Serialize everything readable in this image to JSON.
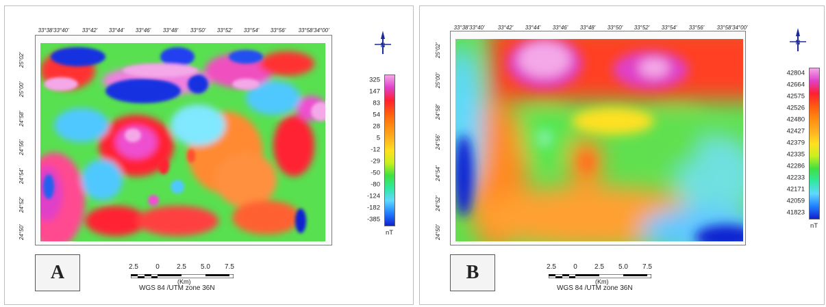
{
  "panels": [
    {
      "id": "A",
      "label": "A",
      "top_ticks": [
        "33°38'33°40'",
        "33°42'",
        "33°44'",
        "33°46'",
        "33°48'",
        "33°50'",
        "33°52'",
        "33°54'",
        "33°56'",
        "33°58'34°00'"
      ],
      "left_ticks": [
        "25°02'",
        "25°00'",
        "24°58'",
        "24°56'",
        "24°54'",
        "24°52'",
        "24°50'"
      ],
      "legend_values": [
        "325",
        "147",
        "83",
        "54",
        "28",
        "5",
        "-12",
        "-29",
        "-50",
        "-80",
        "-124",
        "-182",
        "-385"
      ],
      "legend_colors": [
        "#f4a8e8",
        "#e040c8",
        "#ff2030",
        "#ff5a10",
        "#ff8a10",
        "#ffb020",
        "#ffe020",
        "#c8f020",
        "#40e040",
        "#30e8a0",
        "#60d8ff",
        "#2080ff",
        "#1020d0"
      ],
      "unit": "nT"
    },
    {
      "id": "B",
      "label": "B",
      "top_ticks": [
        "33°38'33°40'",
        "33°42'",
        "33°44'",
        "33°46'",
        "33°48'",
        "33°50'",
        "33°52'",
        "33°54'",
        "33°56'",
        "33°58'34°00'"
      ],
      "left_ticks": [
        "25°02'",
        "25°00'",
        "24°58'",
        "24°56'",
        "24°54'",
        "24°52'",
        "24°50'"
      ],
      "legend_values": [
        "42804",
        "42664",
        "42575",
        "42526",
        "42480",
        "42427",
        "42379",
        "42335",
        "42286",
        "42233",
        "42171",
        "42059",
        "41823"
      ],
      "legend_colors": [
        "#f4a8e8",
        "#e040c8",
        "#ff2030",
        "#ff5a10",
        "#ff8a10",
        "#ffb020",
        "#ffe020",
        "#c8f020",
        "#40e040",
        "#30e8a0",
        "#60d8ff",
        "#2080ff",
        "#1020d0"
      ],
      "unit": "nT"
    }
  ],
  "scalebar": {
    "ticks": [
      "2.5",
      "0",
      "2.5",
      "5.0",
      "7.5"
    ],
    "unit": "(Km)",
    "datum": "WGS 84 /UTM zone 36N"
  },
  "north_label": "N"
}
